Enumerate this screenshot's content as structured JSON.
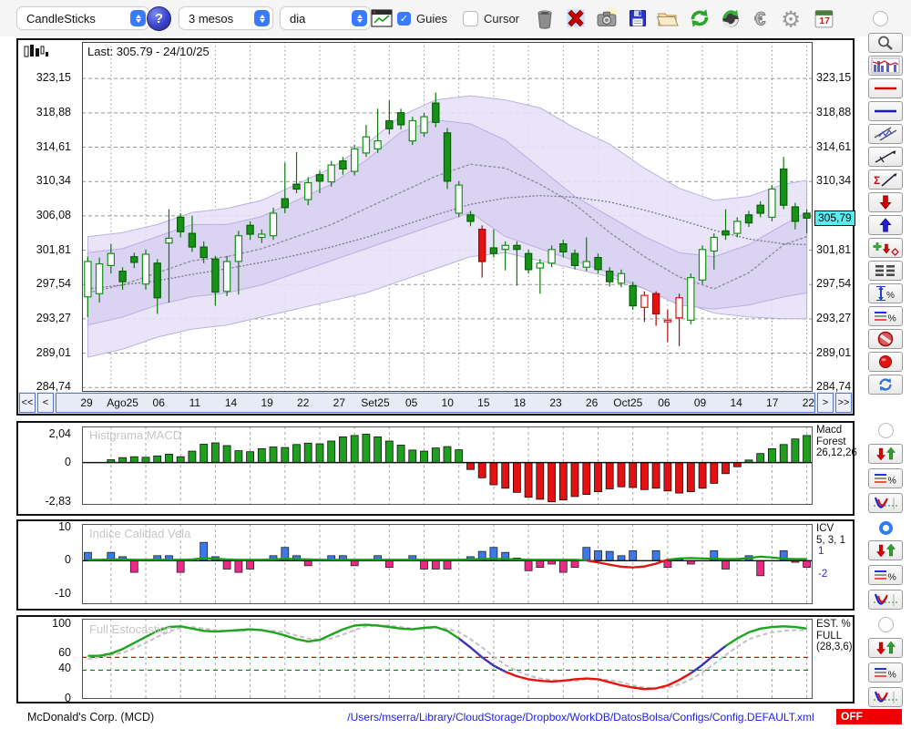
{
  "toolbar": {
    "chart_type": "CandleSticks",
    "help_label": "?",
    "period": "3 mesos",
    "interval": "dia",
    "guies_label": "Guies",
    "guies_checked": true,
    "cursor_label": "Cursor",
    "cursor_checked": false,
    "calendar_day": "17",
    "icon_buttons": [
      "trash",
      "delete-x",
      "camera",
      "save",
      "open-folder",
      "refresh-green",
      "sync-green",
      "euro",
      "settings-gear",
      "calendar"
    ]
  },
  "main_chart": {
    "legend": "Last: 305.79 - 24/10/25",
    "price_axis_labels": [
      "323,15",
      "318,88",
      "314,61",
      "310,34",
      "306,08",
      "301,81",
      "297,54",
      "293,27",
      "289,01",
      "284,74"
    ],
    "price_axis_values": [
      323.15,
      318.88,
      314.61,
      310.34,
      306.08,
      301.81,
      297.54,
      293.27,
      289.01,
      284.74
    ],
    "last_price_label": "305,79",
    "last_price": 305.79
  },
  "date_nav": {
    "buttons": [
      "<<",
      "<",
      ">",
      ">>"
    ],
    "tick_labels": [
      "29",
      "Ago25",
      "06",
      "11",
      "14",
      "19",
      "22",
      "27",
      "Set25",
      "05",
      "10",
      "15",
      "18",
      "23",
      "26",
      "Oct25",
      "06",
      "09",
      "14",
      "17",
      "22"
    ],
    "tick_indices": [
      2,
      5,
      8,
      11,
      14,
      17,
      20,
      23,
      26,
      29,
      32,
      35,
      38,
      41,
      44,
      47,
      50,
      53,
      56,
      59,
      62
    ]
  },
  "panels": {
    "macd": {
      "watermark": "Histgrama MACD",
      "axis_labels": [
        "2,04",
        "0",
        "-2,83"
      ],
      "axis_values": [
        2.04,
        0,
        -2.83
      ],
      "right_lines": [
        "Macd",
        "Forest",
        "26,12,26"
      ]
    },
    "icv": {
      "watermark": "Indice Calidad Vela",
      "axis_labels": [
        "10",
        "0",
        "-10"
      ],
      "axis_values": [
        10,
        0,
        -10
      ],
      "right_lines": [
        "ICV",
        "5, 3, 1"
      ],
      "threshold_labels": [
        {
          "text": "1",
          "value": 1
        },
        {
          "text": "-2",
          "value": -2
        }
      ]
    },
    "stoch": {
      "watermark": "Full Estocastico",
      "axis_labels": [
        "100",
        "60",
        "40",
        "0"
      ],
      "axis_values": [
        100,
        60,
        40,
        0
      ],
      "right_lines": [
        "EST. %",
        "FULL",
        "(28,3,6)"
      ]
    }
  },
  "chart_data": [
    {
      "type": "candlestick",
      "title": "McDonald's Corp. (MCD) daily candles, 3 months",
      "y_range": [
        284.2,
        327.7
      ],
      "candle_styles_legend": {
        "gs": "green solid (down day)",
        "gh": "green hollow (up day)",
        "rs": "red solid",
        "rh": "red hollow"
      },
      "candles": [
        [
          296.0,
          301.0,
          293.5,
          300.4,
          "gh"
        ],
        [
          296.4,
          300.9,
          295.3,
          300.1,
          "gh"
        ],
        [
          299.9,
          302.6,
          298.9,
          301.4,
          "gh"
        ],
        [
          299.2,
          299.7,
          296.9,
          297.9,
          "gs"
        ],
        [
          301.0,
          301.5,
          299.6,
          300.3,
          "gs"
        ],
        [
          297.6,
          301.9,
          296.9,
          301.3,
          "gh"
        ],
        [
          300.2,
          300.7,
          293.9,
          295.9,
          "gs"
        ],
        [
          302.7,
          306.9,
          295.3,
          303.3,
          "gh"
        ],
        [
          305.9,
          306.4,
          303.4,
          304.1,
          "gs"
        ],
        [
          303.9,
          306.1,
          301.6,
          302.2,
          "gs"
        ],
        [
          302.2,
          302.9,
          300.2,
          300.9,
          "gs"
        ],
        [
          300.7,
          301.1,
          294.9,
          296.6,
          "gs"
        ],
        [
          296.7,
          301.1,
          296.1,
          300.4,
          "gh"
        ],
        [
          300.4,
          304.2,
          296.3,
          303.6,
          "gh"
        ],
        [
          304.9,
          305.4,
          303.1,
          303.8,
          "gs"
        ],
        [
          303.4,
          304.4,
          302.7,
          303.8,
          "gh"
        ],
        [
          303.6,
          307.1,
          303.1,
          306.4,
          "gh"
        ],
        [
          308.2,
          312.7,
          306.4,
          307.1,
          "gs"
        ],
        [
          310.0,
          314.0,
          308.9,
          309.4,
          "gs"
        ],
        [
          308.1,
          310.9,
          307.4,
          310.2,
          "gh"
        ],
        [
          311.2,
          311.7,
          308.9,
          310.4,
          "gs"
        ],
        [
          310.3,
          312.9,
          309.7,
          312.4,
          "gh"
        ],
        [
          312.9,
          313.4,
          311.2,
          311.9,
          "gs"
        ],
        [
          311.6,
          314.9,
          311.1,
          314.4,
          "gh"
        ],
        [
          313.9,
          317.4,
          313.4,
          315.9,
          "gh"
        ],
        [
          314.4,
          319.4,
          313.9,
          315.4,
          "gh"
        ],
        [
          317.9,
          320.4,
          316.2,
          316.9,
          "gs"
        ],
        [
          318.9,
          319.4,
          316.8,
          317.4,
          "gs"
        ],
        [
          315.4,
          318.4,
          314.9,
          317.9,
          "gh"
        ],
        [
          316.4,
          318.9,
          315.9,
          318.4,
          "gh"
        ],
        [
          320.1,
          321.4,
          317.1,
          317.7,
          "gs"
        ],
        [
          316.4,
          317.0,
          309.4,
          310.4,
          "gs"
        ],
        [
          306.4,
          310.4,
          305.9,
          309.9,
          "gh"
        ],
        [
          306.2,
          306.7,
          304.8,
          305.4,
          "gs"
        ],
        [
          304.4,
          304.9,
          298.4,
          300.4,
          "rs"
        ],
        [
          302.1,
          304.4,
          300.9,
          301.4,
          "gs"
        ],
        [
          301.9,
          302.9,
          299.3,
          302.4,
          "gh"
        ],
        [
          302.4,
          302.9,
          297.4,
          301.9,
          "gs"
        ],
        [
          301.4,
          301.9,
          298.9,
          299.4,
          "gs"
        ],
        [
          299.6,
          300.7,
          296.4,
          300.2,
          "gh"
        ],
        [
          300.2,
          302.4,
          299.7,
          301.9,
          "gh"
        ],
        [
          302.6,
          303.1,
          300.9,
          301.6,
          "gs"
        ],
        [
          301.4,
          301.9,
          299.4,
          299.9,
          "gs"
        ],
        [
          299.7,
          303.4,
          299.2,
          300.4,
          "gh"
        ],
        [
          300.9,
          301.4,
          298.9,
          299.4,
          "gs"
        ],
        [
          299.2,
          299.7,
          297.3,
          297.9,
          "gs"
        ],
        [
          297.7,
          299.4,
          297.2,
          298.9,
          "gh"
        ],
        [
          297.4,
          297.9,
          294.4,
          294.9,
          "gs"
        ],
        [
          294.7,
          296.7,
          292.9,
          296.2,
          "rh"
        ],
        [
          296.4,
          296.7,
          292.4,
          293.9,
          "rs"
        ],
        [
          292.9,
          294.4,
          290.4,
          293.1,
          "rh"
        ],
        [
          293.4,
          296.4,
          289.9,
          295.9,
          "rh"
        ],
        [
          293.1,
          298.9,
          292.6,
          298.4,
          "gh"
        ],
        [
          298.1,
          302.4,
          297.6,
          301.9,
          "gh"
        ],
        [
          301.7,
          303.9,
          299.4,
          303.4,
          "gh"
        ],
        [
          304.2,
          306.9,
          303.1,
          303.7,
          "gs"
        ],
        [
          303.9,
          305.9,
          303.4,
          305.4,
          "gh"
        ],
        [
          306.2,
          306.7,
          304.7,
          305.2,
          "gs"
        ],
        [
          307.4,
          307.9,
          305.9,
          306.4,
          "gs"
        ],
        [
          305.9,
          309.9,
          305.4,
          309.4,
          "gh"
        ],
        [
          311.9,
          313.4,
          306.9,
          307.4,
          "gs"
        ],
        [
          307.2,
          307.7,
          304.4,
          305.4,
          "gs"
        ],
        [
          306.4,
          306.9,
          303.9,
          305.79,
          "gs"
        ]
      ],
      "band_sample_indices": [
        0,
        3,
        6,
        9,
        12,
        15,
        18,
        21,
        24,
        27,
        30,
        33,
        36,
        39,
        42,
        45,
        48,
        51,
        54,
        57,
        60,
        62
      ],
      "outer_band_upper": [
        303.5,
        304,
        305,
        306.5,
        307,
        308,
        310,
        312,
        315,
        318.5,
        320.5,
        321,
        320.5,
        319.5,
        317,
        315,
        312,
        309.5,
        308,
        308.5,
        310,
        310.5
      ],
      "outer_band_lower": [
        288.5,
        289.5,
        291,
        292,
        292.5,
        293.5,
        294.5,
        295.5,
        296.5,
        298,
        299.5,
        301,
        301.5,
        300.5,
        299.5,
        298.5,
        297,
        295.5,
        294,
        293.5,
        293.3,
        293.3
      ],
      "inner_band_upper": [
        301.5,
        302,
        303.5,
        305,
        305,
        306,
        308,
        310,
        313,
        316.5,
        318,
        317.5,
        315.5,
        312,
        308.5,
        306,
        303.5,
        301.5,
        301,
        302.5,
        305,
        306.5
      ],
      "inner_band_lower": [
        292.5,
        293.5,
        295,
        296,
        296.5,
        297.5,
        299,
        300.5,
        302,
        303.5,
        305,
        306.5,
        303.5,
        302,
        300.5,
        299,
        297,
        295,
        294.5,
        295,
        296,
        296.5
      ],
      "ma_fast": [
        296.5,
        297.5,
        299,
        300.5,
        301,
        302,
        303.5,
        305,
        307,
        309,
        311,
        312.5,
        312,
        310,
        307.5,
        304,
        301,
        298.5,
        297,
        299,
        302.5,
        303.5
      ],
      "ma_slow": [
        297,
        297.5,
        298,
        298.8,
        299.5,
        300.3,
        301.2,
        302.2,
        303.4,
        304.8,
        306.2,
        307.5,
        308.3,
        308.6,
        308.4,
        307.8,
        306.8,
        305.6,
        304.3,
        303.2,
        302.6,
        302.5
      ]
    },
    {
      "type": "bar",
      "title": "Histgrama MACD (26,12,26)",
      "y_range": [
        -3.05,
        2.6
      ],
      "values": [
        0.0,
        0.0,
        0.2,
        0.35,
        0.42,
        0.38,
        0.48,
        0.6,
        0.42,
        0.82,
        1.32,
        1.42,
        1.22,
        0.85,
        0.78,
        1.0,
        1.12,
        1.08,
        1.3,
        1.4,
        1.35,
        1.55,
        1.85,
        1.95,
        2.04,
        1.85,
        1.55,
        1.25,
        0.9,
        0.82,
        1.05,
        1.15,
        0.92,
        -0.5,
        -1.1,
        -1.6,
        -1.85,
        -2.15,
        -2.5,
        -2.65,
        -2.83,
        -2.7,
        -2.45,
        -2.3,
        -2.1,
        -1.9,
        -1.75,
        -1.8,
        -1.95,
        -1.85,
        -2.05,
        -2.2,
        -2.1,
        -1.85,
        -1.5,
        -0.8,
        -0.3,
        0.18,
        0.65,
        1.0,
        1.3,
        1.7,
        1.95
      ]
    },
    {
      "type": "bar",
      "title": "Indice Calidad Vela (5,3,1)",
      "y_range": [
        -13,
        11
      ],
      "values": [
        2.5,
        0.3,
        2.5,
        1.2,
        -3.5,
        0.3,
        1.5,
        1.5,
        -3.5,
        0.3,
        5.5,
        1.2,
        -2.5,
        -3.5,
        -2.5,
        0.3,
        1.5,
        4.0,
        1.5,
        -1.5,
        0.3,
        1.5,
        1.5,
        -1.5,
        0.3,
        1.5,
        -2.0,
        0.3,
        1.5,
        -2.5,
        -2.5,
        -2.5,
        0.3,
        1.2,
        2.8,
        4.0,
        2.5,
        0.8,
        -3.0,
        -2.0,
        -1.0,
        -3.5,
        -2.0,
        4.0,
        3.0,
        2.8,
        1.5,
        3.0,
        0.3,
        3.0,
        -2.0,
        0.5,
        -1.0,
        0.3,
        3.0,
        -2.5,
        0.3,
        1.5,
        -4.5,
        0.3,
        3.0,
        -0.5,
        -2.0
      ],
      "line": [
        0.3,
        0.3,
        0.4,
        0.4,
        0.3,
        0.3,
        0.3,
        0.3,
        0.3,
        0.4,
        0.8,
        0.6,
        0.4,
        0.3,
        0.3,
        0.3,
        0.4,
        0.6,
        0.5,
        0.4,
        0.3,
        0.3,
        0.3,
        0.3,
        0.3,
        0.3,
        0.3,
        0.3,
        0.3,
        0.3,
        0.3,
        0.3,
        0.3,
        0.4,
        0.5,
        0.6,
        0.5,
        0.4,
        0.3,
        0.3,
        0.3,
        0.3,
        0.3,
        0.1,
        -0.5,
        -1.2,
        -1.8,
        -2.0,
        -1.7,
        -0.9,
        0.3,
        0.7,
        0.8,
        0.7,
        0.6,
        0.5,
        0.5,
        0.8,
        1.2,
        1.0,
        0.6,
        0.5,
        0.5
      ],
      "line_red_segment": [
        43,
        50
      ]
    },
    {
      "type": "line",
      "title": "Full Estocastico (28,3,6)",
      "y_range": [
        0,
        106
      ],
      "thresholds": {
        "red_dashed": 55,
        "green_dashed": 38
      },
      "k": [
        57,
        57,
        60,
        66,
        74,
        82,
        90,
        95,
        96,
        93,
        90,
        89,
        90,
        91,
        92,
        91,
        88,
        84,
        79,
        76,
        78,
        85,
        92,
        97,
        98,
        97,
        95,
        93,
        92,
        94,
        95,
        90,
        80,
        68,
        55,
        44,
        36,
        30,
        26,
        24,
        23,
        24,
        26,
        27,
        26,
        22,
        18,
        15,
        13,
        14,
        18,
        25,
        34,
        45,
        58,
        70,
        80,
        88,
        93,
        95,
        96,
        95,
        93
      ],
      "d": [
        53,
        55,
        58,
        61,
        67,
        74,
        82,
        89,
        94,
        95,
        93,
        91,
        90,
        90,
        91,
        91,
        90,
        88,
        84,
        80,
        78,
        80,
        85,
        91,
        96,
        97,
        97,
        95,
        93,
        93,
        94,
        93,
        88,
        79,
        68,
        56,
        45,
        37,
        31,
        27,
        25,
        24,
        24,
        26,
        26,
        25,
        22,
        18,
        15,
        14,
        15,
        19,
        26,
        35,
        46,
        58,
        69,
        79,
        84,
        88,
        90,
        91,
        91
      ],
      "k_segments": [
        {
          "start": 0,
          "end": 32,
          "color": "green"
        },
        {
          "start": 32,
          "end": 36,
          "color": "blue"
        },
        {
          "start": 36,
          "end": 52,
          "color": "red"
        },
        {
          "start": 52,
          "end": 55,
          "color": "blue"
        },
        {
          "start": 55,
          "end": 62,
          "color": "green"
        }
      ]
    }
  ],
  "sidebar": {
    "tools": [
      "zoom",
      "chart-view",
      "red-hline",
      "blue-hline",
      "channel",
      "trendline",
      "sigma-trend",
      "arrow-down",
      "arrow-up",
      "add-marker",
      "levels",
      "vrange-percent",
      "lines-percent",
      "forbid",
      "record",
      "refresh-blue"
    ],
    "panel_groups": [
      {
        "id": "macd",
        "radio_selected": false,
        "tools": [
          "updown-arrows",
          "lines-percent",
          "v-curve"
        ]
      },
      {
        "id": "icv",
        "radio_selected": true,
        "tools": [
          "updown-arrows",
          "lines-percent",
          "v-curve"
        ]
      },
      {
        "id": "stoch",
        "radio_selected": false,
        "tools": [
          "updown-arrows",
          "lines-percent",
          "v-curve"
        ]
      }
    ]
  },
  "statusbar": {
    "symbol": "McDonald's Corp. (MCD)",
    "config_path": "/Users/mserra/Library/CloudStorage/Dropbox/WorkDB/DatosBolsa/Configs/Config.DEFAULT.xml",
    "off_label": "OFF"
  },
  "colors": {
    "accent_blue": "#3a7bfd",
    "candle_green": "#169316",
    "candle_red": "#e51212",
    "band_fill_outer": "#e7e2f8",
    "band_fill_inner": "#d9d2f2",
    "icv_blue": "#3b79e8",
    "icv_pink": "#ea2a86",
    "stoch_green": "#1fa51f",
    "stoch_blue": "#3c34b8",
    "stoch_red": "#ea1111",
    "last_badge_cyan": "#57eef2",
    "off_red": "#ee0000",
    "path_blue": "#2222ee"
  }
}
